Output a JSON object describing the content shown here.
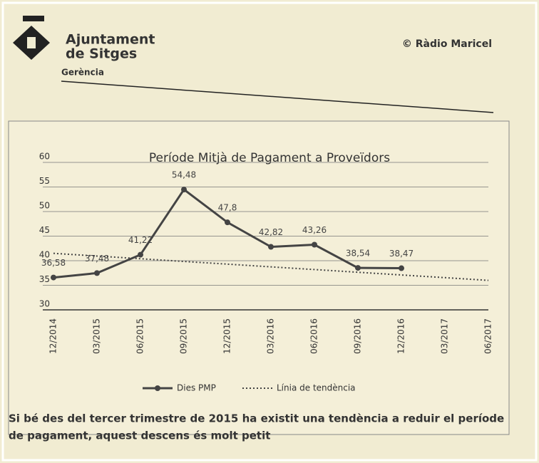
{
  "header": {
    "org_line1": "Ajuntament",
    "org_line2": "de Sitges",
    "department": "Gerència",
    "credit": "© Ràdio Maricel"
  },
  "body": {
    "lines": [
      "Si bé des del tercer trimestre de 2015 ha existit una tendència a reduir el període",
      "de pagament, aquest descens és molt petit"
    ]
  },
  "chart_data": {
    "type": "line",
    "title": "Període Mitjà de Pagament a Proveïdors",
    "categories": [
      "12/2014",
      "03/2015",
      "06/2015",
      "09/2015",
      "12/2015",
      "03/2016",
      "06/2016",
      "09/2016",
      "12/2016",
      "03/2017",
      "06/2017"
    ],
    "series": [
      {
        "name": "Dies PMP",
        "color": "#444444",
        "style": "solid",
        "markers": true,
        "values": [
          36.58,
          37.48,
          41.22,
          54.48,
          47.8,
          42.82,
          43.26,
          38.54,
          38.47,
          null,
          null
        ],
        "value_labels": [
          "36,58",
          "37,48",
          "41,22",
          "54,48",
          "47,8",
          "42,82",
          "43,26",
          "38,54",
          "38,47",
          null,
          null
        ]
      },
      {
        "name": "Línia de tendència",
        "color": "#444444",
        "style": "dotted",
        "markers": false,
        "values": [
          41.5,
          40.95,
          40.4,
          39.85,
          39.3,
          38.75,
          38.2,
          37.65,
          37.1,
          36.55,
          36.0
        ]
      }
    ],
    "ylim": [
      30,
      60
    ],
    "yticks": [
      30,
      35,
      40,
      45,
      50,
      55,
      60
    ],
    "grid": true,
    "legend": "bottom"
  }
}
